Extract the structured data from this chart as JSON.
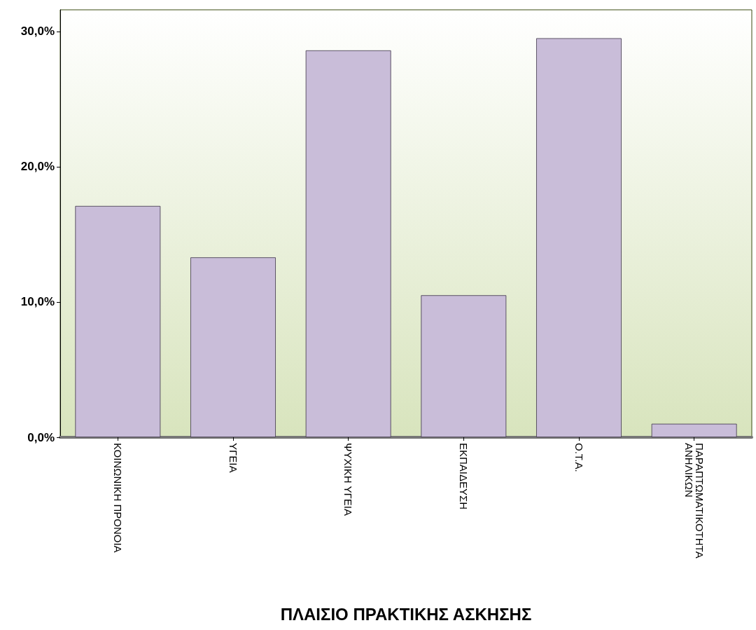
{
  "chart_data": {
    "type": "bar",
    "xlabel": "ΠΛΑΙΣΙΟ ΠΡΑΚΤΙΚΗΣ ΑΣΚΗΣΗΣ",
    "categories": [
      "ΚΟΙΝΩΝΙΚΗ ΠΡΟΝΟΙΑ",
      "ΥΓΕΙΑ",
      "ΨΥΧΙΚΗ ΥΓΕΙΑ",
      "ΕΚΠΑΙΔΕΥΣΗ",
      "Ο.Τ.Α.",
      "ΠΑΡΑΠΤΩΜΑΤΙΚΟΤΗΤΑ\nΑΝΗΛΙΚΩΝ"
    ],
    "values": [
      17.1,
      13.3,
      28.6,
      10.5,
      29.5,
      1.0
    ],
    "color": "#c9bdd9",
    "ylim": [
      0,
      31.6
    ],
    "yticks": [
      {
        "value": 0,
        "label": "0,0%"
      },
      {
        "value": 10,
        "label": "10,0%"
      },
      {
        "value": 20,
        "label": "20,0%"
      },
      {
        "value": 30,
        "label": "30,0%"
      }
    ],
    "grid": false
  }
}
